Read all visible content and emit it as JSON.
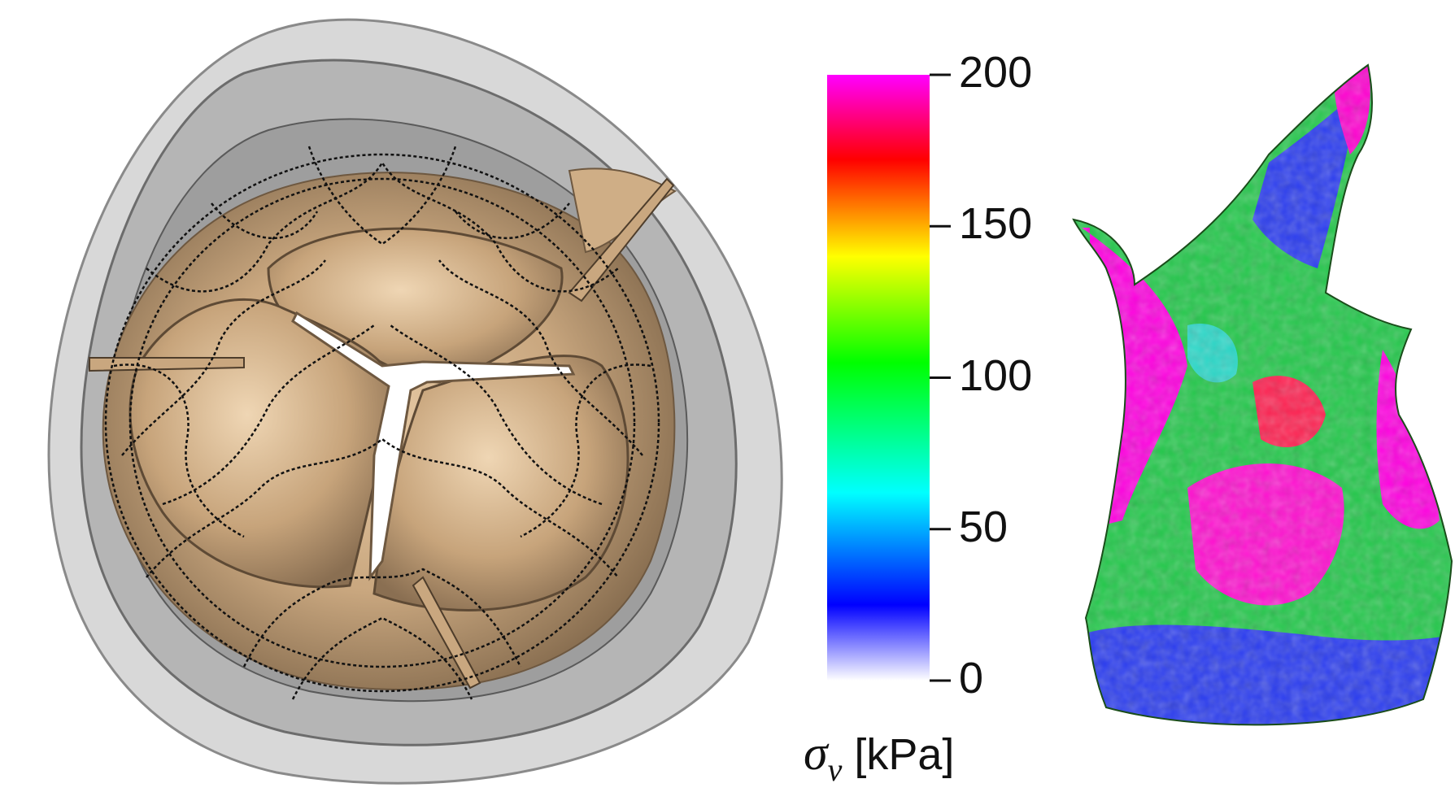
{
  "colorbar": {
    "title_symbol": "σ",
    "title_subscript": "v",
    "title_unit": "[kPa]",
    "ticks": [
      {
        "value": 200,
        "label": "200"
      },
      {
        "value": 150,
        "label": "150"
      },
      {
        "value": 100,
        "label": "100"
      },
      {
        "value": 50,
        "label": "50"
      },
      {
        "value": 0,
        "label": "0"
      }
    ],
    "range": [
      0,
      200
    ],
    "gradient_stops": [
      {
        "value": 0,
        "color": "#ffffff"
      },
      {
        "value": 25,
        "color": "#0000ff"
      },
      {
        "value": 62,
        "color": "#00ffff"
      },
      {
        "value": 105,
        "color": "#00ff00"
      },
      {
        "value": 140,
        "color": "#ffff00"
      },
      {
        "value": 172,
        "color": "#ff0000"
      },
      {
        "value": 200,
        "color": "#ff00ff"
      }
    ]
  },
  "colors": {
    "tissue_beige": "#d8b892",
    "tissue_shadow": "#8c7358",
    "vessel_gray": "#9a9a9a",
    "stent_wire": "#111111"
  }
}
